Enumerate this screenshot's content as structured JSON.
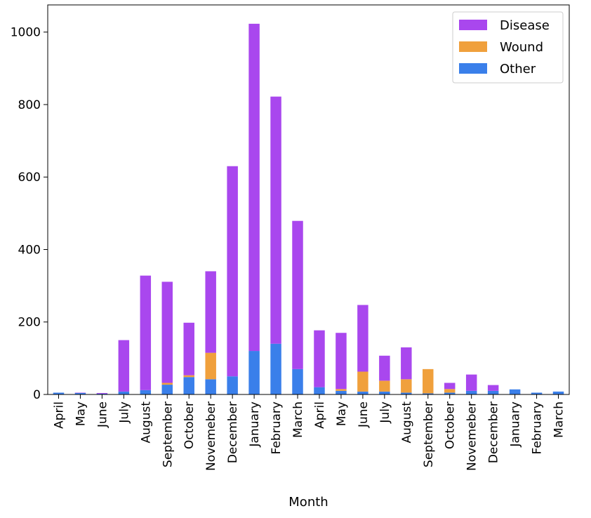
{
  "chart_data": {
    "type": "bar",
    "stacked": true,
    "xlabel": "Month",
    "ylabel": "",
    "ylim": [
      0,
      1075
    ],
    "yticks": [
      0,
      200,
      400,
      600,
      800,
      1000
    ],
    "grid": false,
    "legend_position": "top-right",
    "categories": [
      "April",
      "May",
      "June",
      "July",
      "August",
      "September",
      "October",
      "Novemeber",
      "December",
      "January",
      "February",
      "March",
      "April",
      "May",
      "June",
      "July",
      "August",
      "September",
      "October",
      "Novemeber",
      "December",
      "January",
      "February",
      "March"
    ],
    "series": [
      {
        "name": "Other",
        "color": "#3a7fea",
        "values": [
          5,
          4,
          2,
          8,
          12,
          27,
          48,
          42,
          50,
          120,
          140,
          70,
          20,
          10,
          8,
          8,
          5,
          3,
          5,
          10,
          10,
          14,
          5,
          8
        ]
      },
      {
        "name": "Wound",
        "color": "#f0a03c",
        "values": [
          0,
          0,
          0,
          0,
          0,
          5,
          5,
          73,
          0,
          0,
          0,
          0,
          0,
          5,
          55,
          30,
          37,
          67,
          10,
          0,
          0,
          0,
          0,
          0
        ]
      },
      {
        "name": "Disease",
        "color": "#a947ee",
        "values": [
          0,
          1,
          2,
          142,
          316,
          279,
          145,
          225,
          580,
          903,
          682,
          409,
          157,
          155,
          184,
          69,
          88,
          0,
          17,
          45,
          16,
          0,
          0,
          0
        ]
      }
    ],
    "legend_order": [
      "Disease",
      "Wound",
      "Other"
    ]
  }
}
